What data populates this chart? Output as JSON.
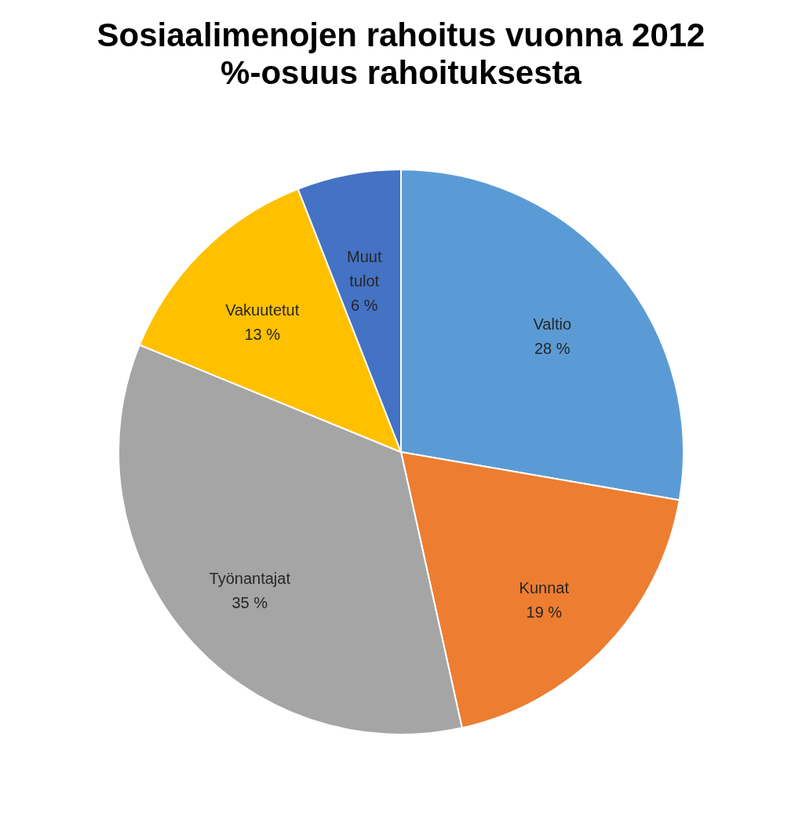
{
  "chart_data": {
    "type": "pie",
    "title": "Sosiaalimenojen rahoitus vuonna 2012",
    "subtitle": "%-osuus rahoituksesta",
    "categories": [
      "Valtio",
      "Kunnat",
      "Työnantajat",
      "Vakuutetut",
      "Muut tulot"
    ],
    "values": [
      28,
      19,
      35,
      13,
      6
    ],
    "value_labels": [
      "28 %",
      "19 %",
      "35 %",
      "13 %",
      "6 %"
    ],
    "colors": [
      "#5b9bd5",
      "#ed7d31",
      "#a5a5a5",
      "#ffc000",
      "#4472c4"
    ],
    "legend": false
  }
}
